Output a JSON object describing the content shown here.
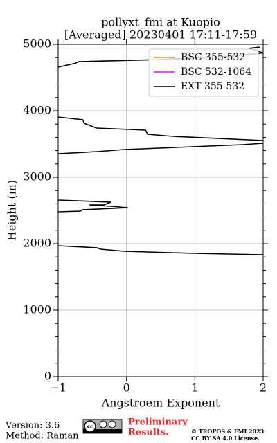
{
  "chart_data": {
    "type": "line",
    "title": [
      "pollyxt_fmi at Kuopio",
      "[Averaged] 20230401 17:11-17:59"
    ],
    "x_label": "Angstroem Exponent",
    "y_label": "Height (m)",
    "xlim": [
      -1,
      2
    ],
    "ylim": [
      0,
      5000
    ],
    "xticks": [
      {
        "value": -1,
        "label": "−1"
      },
      0,
      1,
      2
    ],
    "yticks": [
      0,
      1000,
      2000,
      3000,
      4000,
      5000
    ],
    "yminorticks": [
      200,
      400,
      600,
      800,
      1200,
      1400,
      1600,
      1800,
      2200,
      2400,
      2600,
      2800,
      3200,
      3400,
      3600,
      3800,
      4200,
      4400,
      4600,
      4800
    ],
    "grid": true,
    "legend": "upper right",
    "series": [
      {
        "name": "BSC 355-532",
        "color": "#ff7f0e",
        "x": [],
        "values": []
      },
      {
        "name": "BSC 532-1064",
        "color": "#ff00ff",
        "x": [],
        "values": []
      },
      {
        "name": "EXT 355-532",
        "color": "#000000",
        "x": [
          1.95,
          1.8,
          2.0,
          1.5,
          0.5,
          -0.7,
          -0.75,
          -1,
          null,
          -1,
          -0.64,
          -0.62,
          -0.44,
          0.28,
          0.31,
          0.68,
          2,
          null,
          2,
          1.7,
          0.48,
          -0.03,
          -0.43,
          -1,
          null,
          -1,
          -0.23,
          -0.33,
          -0.55,
          -0.23,
          0.02,
          -0.64,
          -0.68,
          -1,
          null,
          -1,
          -0.43,
          -0.38,
          -0.03,
          0.99,
          2
        ],
        "values": [
          4958,
          4940,
          4870,
          4820,
          4770,
          4740,
          4715,
          4656,
          null,
          3906,
          3865,
          3812,
          3740,
          3708,
          3646,
          3615,
          3552,
          null,
          3510,
          3490,
          3438,
          3417,
          3385,
          3354,
          null,
          2656,
          2625,
          2583,
          2583,
          2563,
          2542,
          2510,
          2490,
          2479,
          null,
          1969,
          1938,
          1917,
          1885,
          1854,
          1833
        ]
      }
    ]
  },
  "footer": {
    "version": "Version: 3.6",
    "method": "Method: Raman",
    "notice": [
      "Preliminary",
      "Results."
    ],
    "copyright": [
      "© TROPOS & FMI 2023.",
      "CC BY SA 4.0 License."
    ]
  }
}
